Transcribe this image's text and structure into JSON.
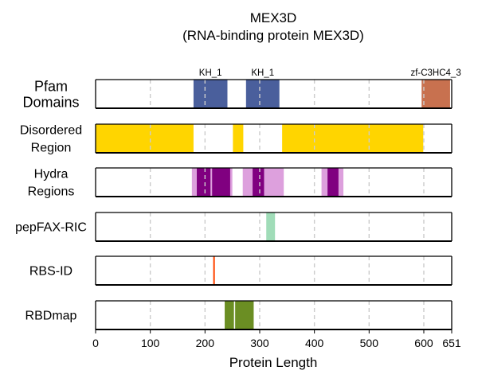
{
  "chart_data": {
    "type": "bar",
    "title": "MEX3D",
    "subtitle": "(RNA-binding protein MEX3D)",
    "xlabel": "Protein Length",
    "xlim": [
      0,
      651
    ],
    "xticks": [
      0,
      100,
      200,
      300,
      400,
      500,
      600,
      651
    ],
    "grid": true,
    "tracks": [
      {
        "label_lines": [
          "Pfam",
          "Domains"
        ],
        "segments": [
          {
            "start": 179,
            "end": 241,
            "color": "#4a5f9c",
            "label": "KH_1"
          },
          {
            "start": 275,
            "end": 336,
            "color": "#4a5f9c",
            "label": "KH_1"
          },
          {
            "start": 596,
            "end": 648,
            "color": "#c8714f",
            "label": "zf-C3HC4_3"
          }
        ]
      },
      {
        "label_lines": [
          "Disordered",
          "Region"
        ],
        "segments": [
          {
            "start": 0,
            "end": 179,
            "color": "#ffd500"
          },
          {
            "start": 251,
            "end": 270,
            "color": "#ffd500"
          },
          {
            "start": 341,
            "end": 599,
            "color": "#ffd500"
          }
        ]
      },
      {
        "label_lines": [
          "Hydra",
          "Regions"
        ],
        "segments": [
          {
            "start": 176,
            "end": 250,
            "color": "#dda0dd"
          },
          {
            "start": 269,
            "end": 344,
            "color": "#dda0dd"
          },
          {
            "start": 413,
            "end": 453,
            "color": "#dda0dd"
          },
          {
            "start": 185,
            "end": 210,
            "color": "#800080"
          },
          {
            "start": 213,
            "end": 246,
            "color": "#800080"
          },
          {
            "start": 287,
            "end": 308,
            "color": "#800080"
          },
          {
            "start": 424,
            "end": 444,
            "color": "#800080"
          }
        ]
      },
      {
        "label_lines": [
          "pepFAX-RIC"
        ],
        "segments": [
          {
            "start": 312,
            "end": 328,
            "color": "#a0dcb8"
          }
        ]
      },
      {
        "label_lines": [
          "RBS-ID"
        ],
        "segments": [
          {
            "start": 215,
            "end": 218,
            "color": "#ff4500"
          }
        ]
      },
      {
        "label_lines": [
          "RBDmap"
        ],
        "segments": [
          {
            "start": 236,
            "end": 289,
            "color": "#6b8e23"
          }
        ],
        "dividers": [
          254
        ]
      }
    ]
  }
}
